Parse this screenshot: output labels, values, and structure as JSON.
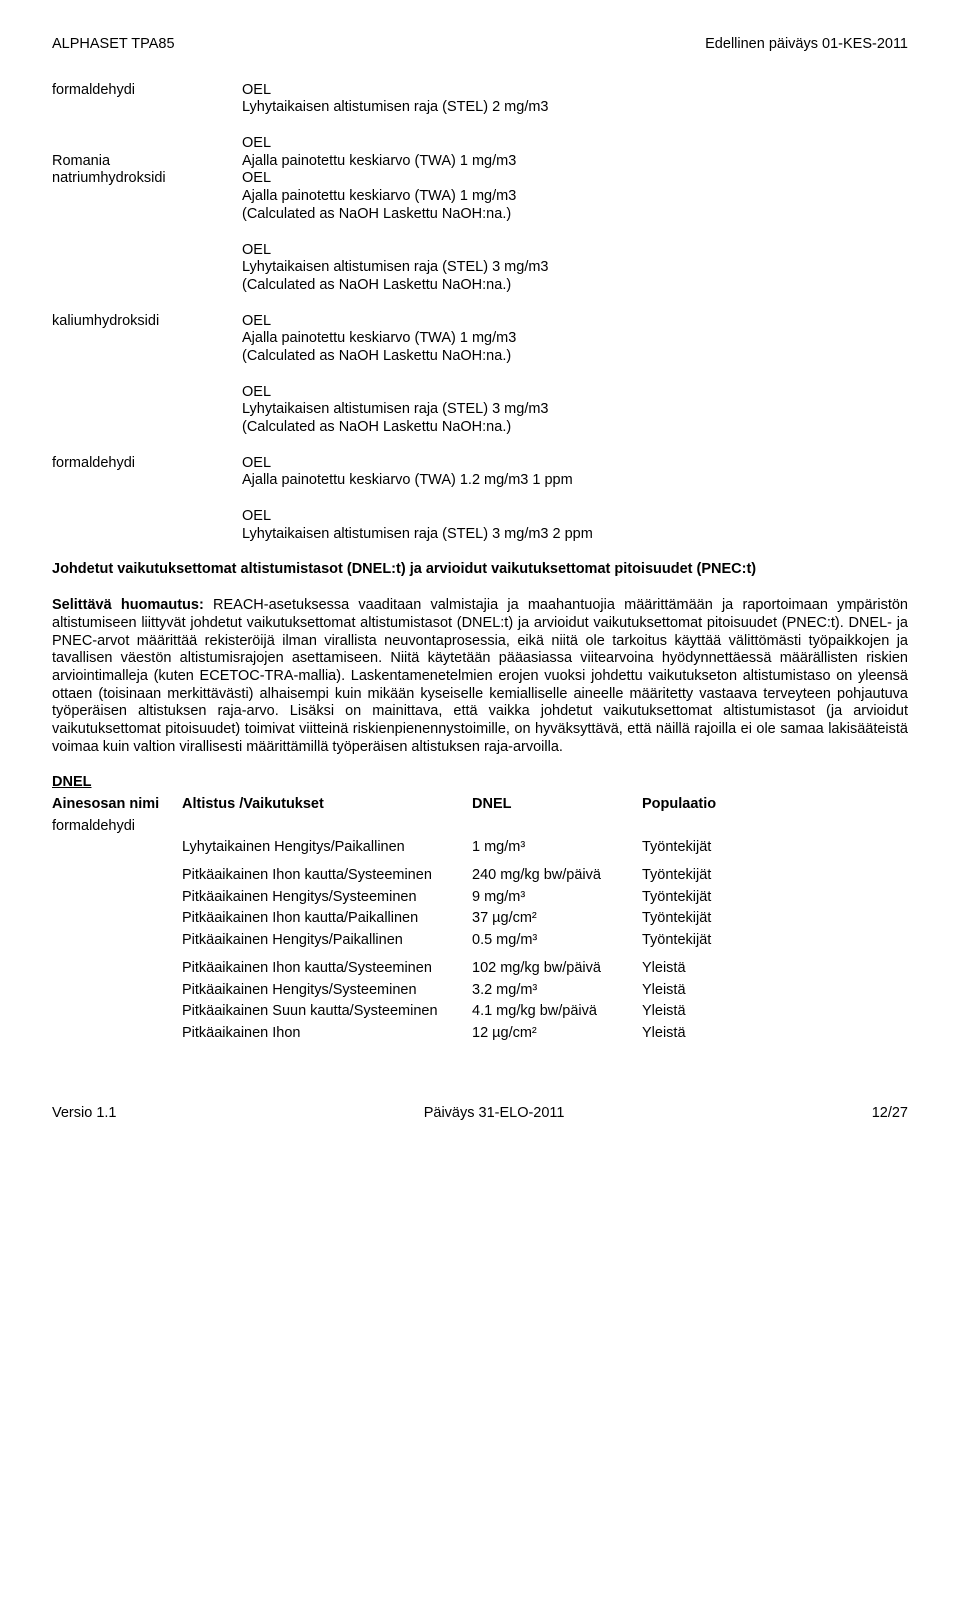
{
  "header": {
    "left": "ALPHASET TPA85",
    "right": "Edellinen päiväys 01-KES-2011"
  },
  "exposure_sections": [
    {
      "left_labels": [
        "formaldehydi"
      ],
      "lines": [
        "OEL",
        "Lyhytaikaisen altistumisen raja (STEL)  2 mg/m3"
      ]
    },
    {
      "left_labels": [
        "",
        "Romania",
        "natriumhydroksidi"
      ],
      "lines": [
        "OEL",
        "Ajalla painotettu keskiarvo (TWA)  1 mg/m3",
        "OEL",
        "Ajalla painotettu keskiarvo (TWA)  1 mg/m3",
        "(Calculated as NaOH Laskettu NaOH:na.)"
      ]
    },
    {
      "left_labels": [
        ""
      ],
      "lines": [
        "OEL",
        "Lyhytaikaisen altistumisen raja (STEL)  3 mg/m3",
        "(Calculated as NaOH Laskettu NaOH:na.)"
      ]
    },
    {
      "left_labels": [
        "kaliumhydroksidi"
      ],
      "lines": [
        "OEL",
        "Ajalla painotettu keskiarvo (TWA)  1 mg/m3",
        "(Calculated as NaOH Laskettu NaOH:na.)"
      ]
    },
    {
      "left_labels": [
        ""
      ],
      "lines": [
        "OEL",
        "Lyhytaikaisen altistumisen raja (STEL)  3 mg/m3",
        "(Calculated as NaOH Laskettu NaOH:na.)"
      ]
    },
    {
      "left_labels": [
        "formaldehydi"
      ],
      "lines": [
        "OEL",
        "Ajalla painotettu keskiarvo (TWA)  1.2 mg/m3   1 ppm"
      ]
    },
    {
      "left_labels": [
        ""
      ],
      "lines": [
        "OEL",
        "Lyhytaikaisen altistumisen raja (STEL)  3 mg/m3   2 ppm"
      ]
    }
  ],
  "derived_heading": "Johdetut vaikutuksettomat altistumistasot (DNEL:t) ja arvioidut vaikutuksettomat pitoisuudet (PNEC:t)",
  "explanatory_label": "Selittävä huomautus:",
  "explanatory_body": " REACH-asetuksessa vaaditaan valmistajia ja maahantuojia määrittämään ja raportoimaan ympäristön altistumiseen liittyvät johdetut vaikutuksettomat altistumistasot (DNEL:t) ja arvioidut vaikutuksettomat pitoisuudet (PNEC:t). DNEL- ja PNEC-arvot määrittää rekisteröijä ilman virallista neuvontaprosessia, eikä niitä ole tarkoitus käyttää välittömästi työpaikkojen ja tavallisen väestön altistumisrajojen asettamiseen. Niitä käytetään pääasiassa viitearvoina hyödynnettäessä määrällisten riskien arviointimalleja (kuten ECETOC-TRA-mallia).  Laskentamenetelmien erojen vuoksi johdettu vaikutukseton altistumistaso on yleensä ottaen (toisinaan merkittävästi) alhaisempi kuin mikään kyseiselle kemialliselle aineelle määritetty vastaava terveyteen pohjautuva työperäisen altistuksen raja-arvo. Lisäksi on mainittava, että vaikka johdetut vaikutuksettomat altistumistasot (ja arvioidut vaikutuksettomat pitoisuudet) toimivat viitteinä riskienpienennystoimille, on hyväksyttävä, että näillä rajoilla ei ole samaa lakisääteistä voimaa kuin valtion virallisesti määrittämillä työperäisen altistuksen raja-arvoilla.",
  "dnel": {
    "heading": "DNEL",
    "columns": [
      "Ainesosan nimi",
      "Altistus /Vaikutukset",
      "DNEL",
      "Populaatio"
    ],
    "substance": "formaldehydi",
    "rows": [
      {
        "exposure": "Lyhytaikainen Hengitys/Paikallinen",
        "dnel": "1 mg/m³",
        "pop": "Työntekijät",
        "gap_before": false
      },
      {
        "exposure": "Pitkäaikainen Ihon kautta/Systeeminen",
        "dnel": "240 mg/kg bw/päivä",
        "pop": "Työntekijät",
        "gap_before": true
      },
      {
        "exposure": "Pitkäaikainen Hengitys/Systeeminen",
        "dnel": "9 mg/m³",
        "pop": "Työntekijät",
        "gap_before": false
      },
      {
        "exposure": "Pitkäaikainen Ihon kautta/Paikallinen",
        "dnel": "37 µg/cm²",
        "pop": "Työntekijät",
        "gap_before": false
      },
      {
        "exposure": "Pitkäaikainen Hengitys/Paikallinen",
        "dnel": "0.5 mg/m³",
        "pop": "Työntekijät",
        "gap_before": false
      },
      {
        "exposure": "Pitkäaikainen Ihon kautta/Systeeminen",
        "dnel": "102 mg/kg bw/päivä",
        "pop": "Yleistä",
        "gap_before": true
      },
      {
        "exposure": "Pitkäaikainen Hengitys/Systeeminen",
        "dnel": "3.2 mg/m³",
        "pop": "Yleistä",
        "gap_before": false
      },
      {
        "exposure": "Pitkäaikainen Suun kautta/Systeeminen",
        "dnel": "4.1 mg/kg bw/päivä",
        "pop": "Yleistä",
        "gap_before": false
      },
      {
        "exposure": "Pitkäaikainen Ihon",
        "dnel": "12 µg/cm²",
        "pop": "Yleistä",
        "gap_before": false
      }
    ]
  },
  "footer": {
    "left": "Versio  1.1",
    "center": "Päiväys 31-ELO-2011",
    "right": "12/27"
  }
}
